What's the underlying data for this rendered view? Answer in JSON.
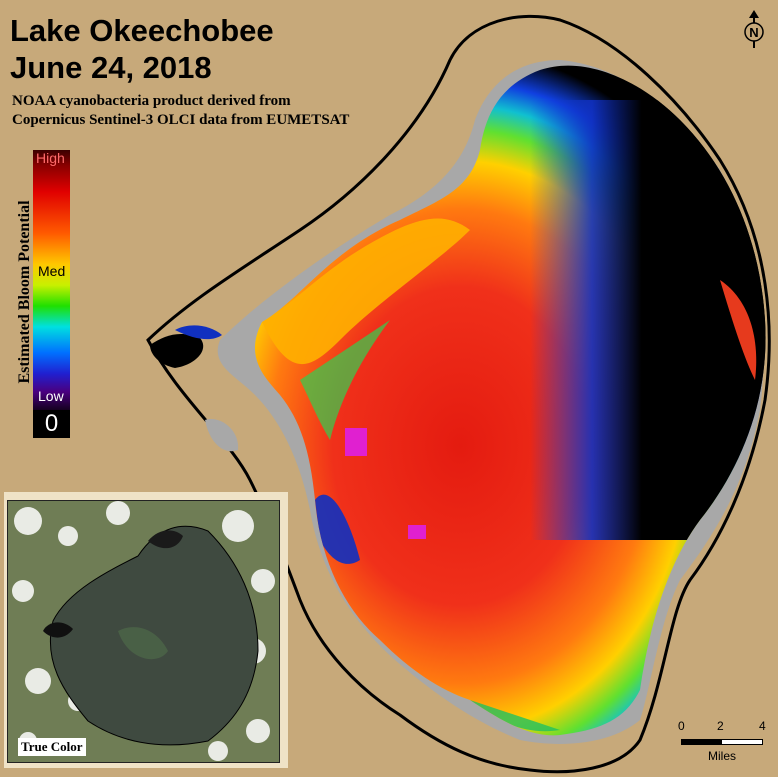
{
  "title": {
    "line1": "Lake Okeechobee",
    "line2": "June 24, 2018"
  },
  "subtitle": {
    "line1": "NOAA cyanobacteria product derived from",
    "line2": "Copernicus Sentinel-3 OLCI data from EUMETSAT"
  },
  "legend": {
    "axis_label": "Estimated Bloom Potential",
    "high": "High",
    "med": "Med",
    "low": "Low",
    "zero": "0",
    "colors": {
      "high": "#8a0000",
      "med": "#20e000",
      "low": "#4a0080",
      "zero": "#000000"
    }
  },
  "inset": {
    "caption": "True Color"
  },
  "scale_bar": {
    "ticks": [
      "0",
      "2",
      "4"
    ],
    "units": "Miles"
  },
  "north_arrow": {
    "letter": "N",
    "icon": "north-arrow-icon"
  },
  "colors": {
    "land": "#c7a97a",
    "no_data": "#a8a8a8",
    "shoreline": "#000000"
  }
}
